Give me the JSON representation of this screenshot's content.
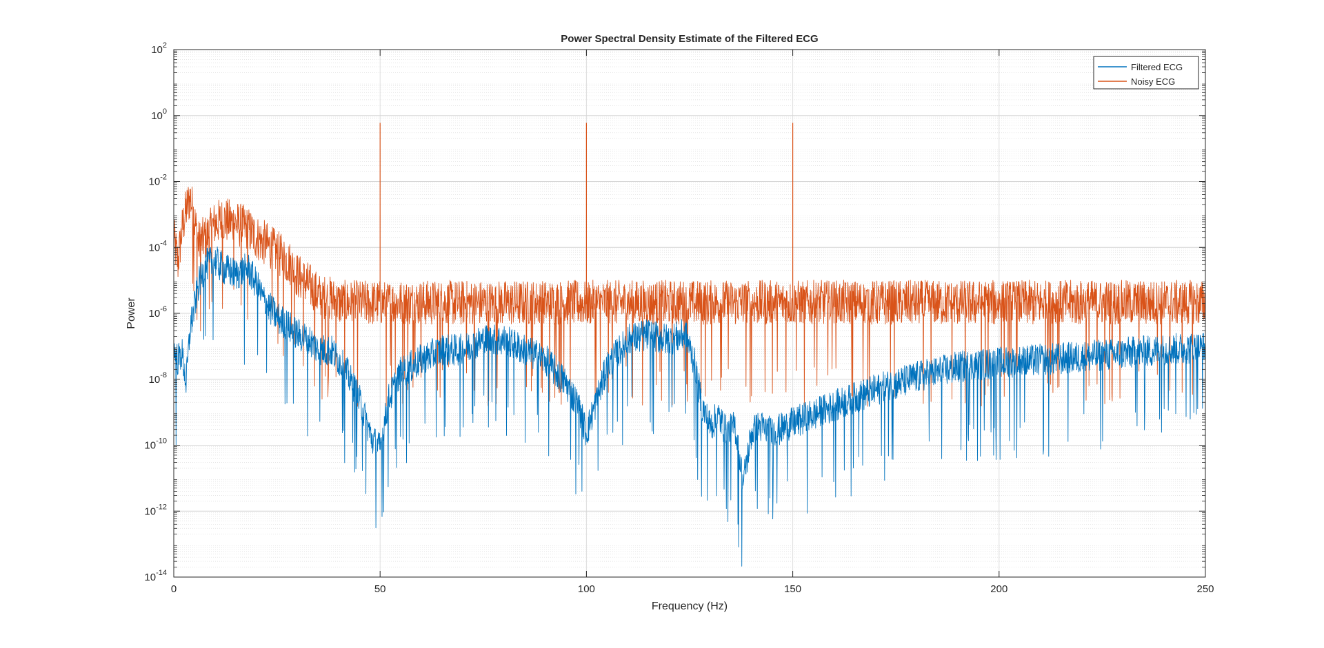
{
  "chart_data": {
    "type": "line",
    "title": "Power Spectral Density Estimate of the Filtered ECG",
    "xlabel": "Frequency (Hz)",
    "ylabel": "Power",
    "xlim": [
      0,
      250
    ],
    "ylim": [
      1e-14,
      100
    ],
    "yscale": "log",
    "grid": true,
    "minor_grid": true,
    "legend_position": "top-right",
    "x_ticks": [
      {
        "value": 0,
        "label": "0"
      },
      {
        "value": 50,
        "label": "50"
      },
      {
        "value": 100,
        "label": "100"
      },
      {
        "value": 150,
        "label": "150"
      },
      {
        "value": 200,
        "label": "200"
      },
      {
        "value": 250,
        "label": "250"
      }
    ],
    "y_ticks": [
      {
        "value": 2,
        "base": "10",
        "exp": "2"
      },
      {
        "value": 0,
        "base": "10",
        "exp": "0"
      },
      {
        "value": -2,
        "base": "10",
        "exp": "-2"
      },
      {
        "value": -4,
        "base": "10",
        "exp": "-4"
      },
      {
        "value": -6,
        "base": "10",
        "exp": "-6"
      },
      {
        "value": -8,
        "base": "10",
        "exp": "-8"
      },
      {
        "value": -10,
        "base": "10",
        "exp": "-10"
      },
      {
        "value": -12,
        "base": "10",
        "exp": "-12"
      },
      {
        "value": -14,
        "base": "10",
        "exp": "-14"
      }
    ],
    "series": [
      {
        "name": "Filtered ECG",
        "color": "#0072BD",
        "x": [
          0,
          1,
          2,
          3,
          4,
          5,
          6,
          8,
          10,
          12,
          15,
          18,
          20,
          22,
          25,
          28,
          30,
          33,
          35,
          38,
          40,
          42,
          45,
          47,
          48,
          50,
          52,
          55,
          60,
          65,
          70,
          75,
          80,
          85,
          90,
          95,
          98,
          100,
          102,
          105,
          110,
          115,
          120,
          124,
          126,
          128,
          130,
          132,
          134,
          136,
          138,
          140,
          142,
          145,
          150,
          160,
          170,
          180,
          190,
          200,
          210,
          220,
          230,
          240,
          250
        ],
        "y": [
          1e-07,
          5e-08,
          8e-08,
          1e-08,
          5e-07,
          2e-06,
          1e-05,
          4e-05,
          5e-05,
          3e-05,
          2e-05,
          3e-05,
          1e-05,
          3e-06,
          1e-06,
          5e-07,
          3e-07,
          2e-07,
          1e-07,
          1e-07,
          5e-08,
          2e-08,
          3e-09,
          5e-10,
          2e-10,
          1e-10,
          3e-09,
          2e-08,
          5e-08,
          1e-07,
          1e-07,
          2e-07,
          2e-07,
          1e-07,
          5e-08,
          1e-08,
          2e-09,
          3e-10,
          2e-09,
          3e-08,
          2e-07,
          3e-07,
          2e-07,
          3e-07,
          5e-08,
          2e-09,
          5e-10,
          1e-09,
          3e-10,
          5e-10,
          1e-11,
          3e-10,
          5e-10,
          3e-10,
          6e-10,
          2e-09,
          6e-09,
          1.5e-08,
          3e-08,
          4e-08,
          5e-08,
          6e-08,
          8e-08,
          1e-07,
          1.2e-07
        ]
      },
      {
        "name": "Noisy ECG",
        "color": "#D95319",
        "x": [
          0,
          1,
          2,
          3,
          4,
          5,
          6,
          8,
          10,
          12,
          15,
          18,
          20,
          22,
          25,
          28,
          30,
          33,
          35,
          38,
          40,
          45,
          50,
          60,
          80,
          100,
          120,
          150,
          175,
          200,
          225,
          250
        ],
        "y": [
          0.0003,
          5e-05,
          0.0005,
          0.002,
          0.005,
          0.001,
          0.0002,
          0.0003,
          0.0008,
          0.001,
          0.0008,
          0.0005,
          0.0003,
          0.0002,
          0.0001,
          5e-05,
          2e-05,
          1e-05,
          5e-06,
          4e-06,
          3e-06,
          3e-06,
          3e-06,
          3e-06,
          3e-06,
          3e-06,
          3e-06,
          3e-06,
          3e-06,
          3e-06,
          3e-06,
          3e-06
        ],
        "spikes": [
          {
            "x": 50,
            "y": 0.6
          },
          {
            "x": 100,
            "y": 0.6
          },
          {
            "x": 150,
            "y": 0.6
          }
        ]
      }
    ]
  }
}
